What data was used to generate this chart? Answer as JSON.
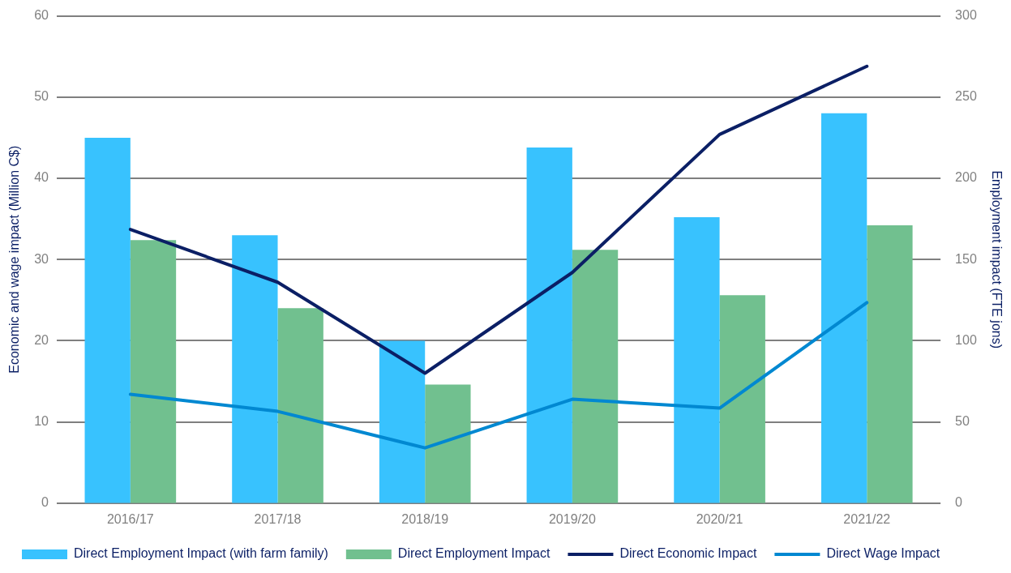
{
  "chart_data": {
    "type": "bar",
    "categories": [
      "2016/17",
      "2017/18",
      "2018/19",
      "2019/20",
      "2020/21",
      "2021/22"
    ],
    "ylabel": "Economic and wage impact (Million C$)",
    "y2label": "Employment impact (FTE jons)",
    "ylim": [
      0,
      60
    ],
    "yticks": [
      0,
      10,
      20,
      30,
      40,
      50,
      60
    ],
    "y2lim": [
      0,
      300
    ],
    "y2ticks": [
      0,
      50,
      100,
      150,
      200,
      250,
      300
    ],
    "grid": "y",
    "legend": "bottom",
    "series": [
      {
        "name": "Direct Employment Impact (with farm family)",
        "axis": "y2",
        "color": "#38c2fe",
        "values": [
          225,
          165,
          100,
          219,
          176,
          240
        ]
      },
      {
        "name": "Direct Employment Impact",
        "axis": "y2",
        "color": "#71c08f",
        "values": [
          162,
          120,
          73,
          156,
          128,
          171
        ]
      },
      {
        "name": "Direct Economic Impact",
        "type": "line",
        "color": "#0b1f65",
        "values": [
          33.7,
          27.2,
          16.0,
          28.4,
          45.4,
          53.8
        ]
      },
      {
        "name": "Direct Wage Impact",
        "type": "line",
        "color": "#0088d1",
        "values": [
          13.4,
          11.3,
          6.8,
          12.8,
          11.7,
          24.7
        ]
      }
    ]
  }
}
